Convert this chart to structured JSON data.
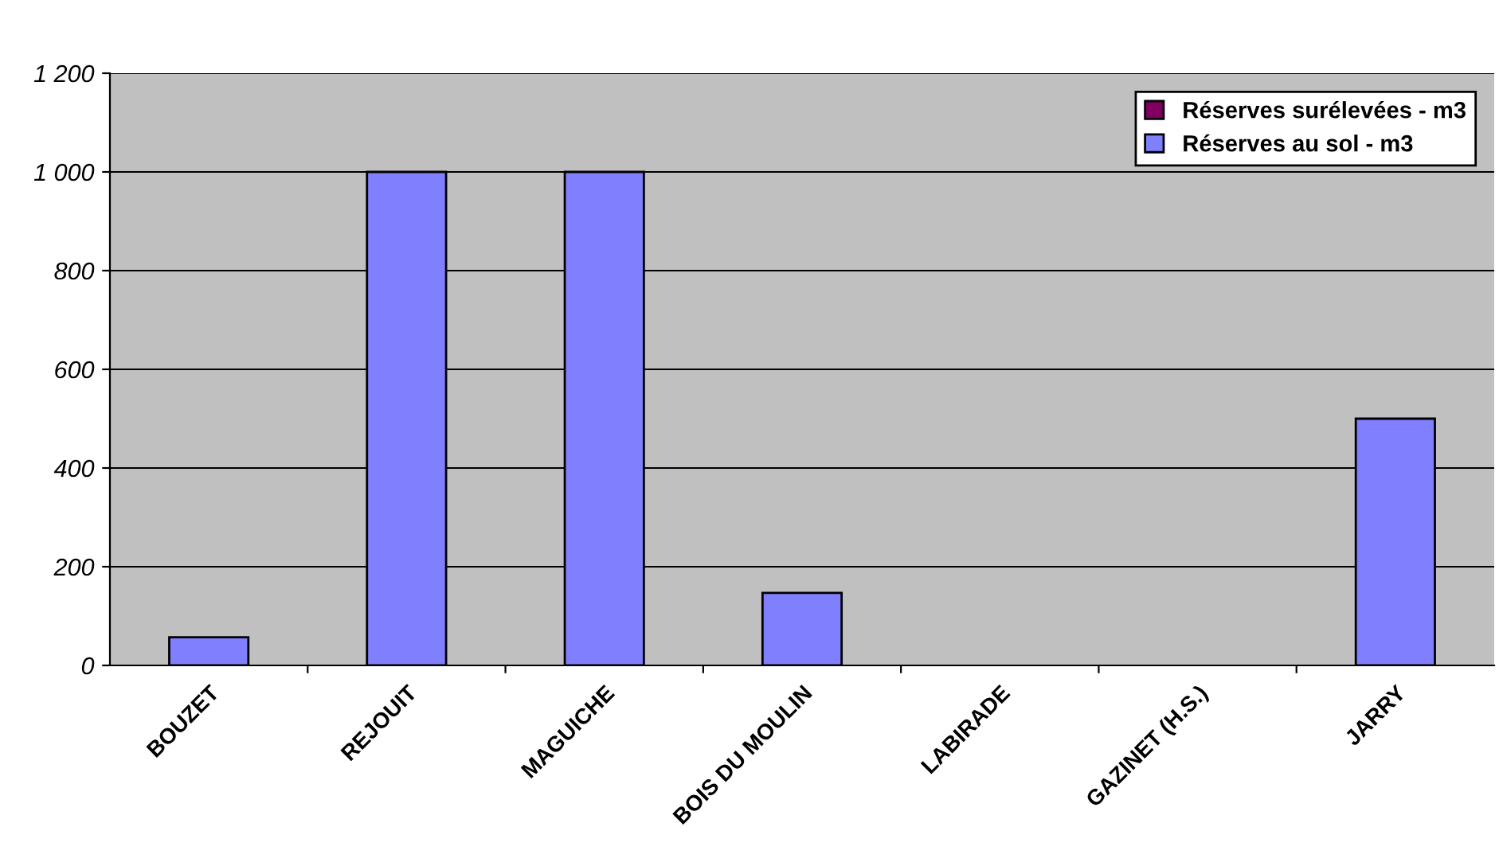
{
  "chart_data": {
    "type": "bar",
    "categories": [
      "BOUZET",
      "REJOUIT",
      "MAGUICHE",
      "BOIS DU MOULIN",
      "LABIRADE",
      "GAZINET (H.S.)",
      "JARRY"
    ],
    "series": [
      {
        "name": "Réserves surélevées - m3",
        "color": "#800060",
        "values": [
          null,
          null,
          null,
          null,
          null,
          null,
          null
        ]
      },
      {
        "name": "Réserves au sol - m3",
        "color": "#8080ff",
        "values": [
          57,
          1000,
          1000,
          147,
          null,
          null,
          500
        ]
      }
    ],
    "ylim": [
      0,
      1200
    ],
    "yticks": [
      0,
      200,
      400,
      600,
      800,
      {
        "value": 1000,
        "label": "1 000"
      },
      {
        "value": 1200,
        "label": "1 200"
      }
    ],
    "grid": "y",
    "legend": "top right"
  }
}
